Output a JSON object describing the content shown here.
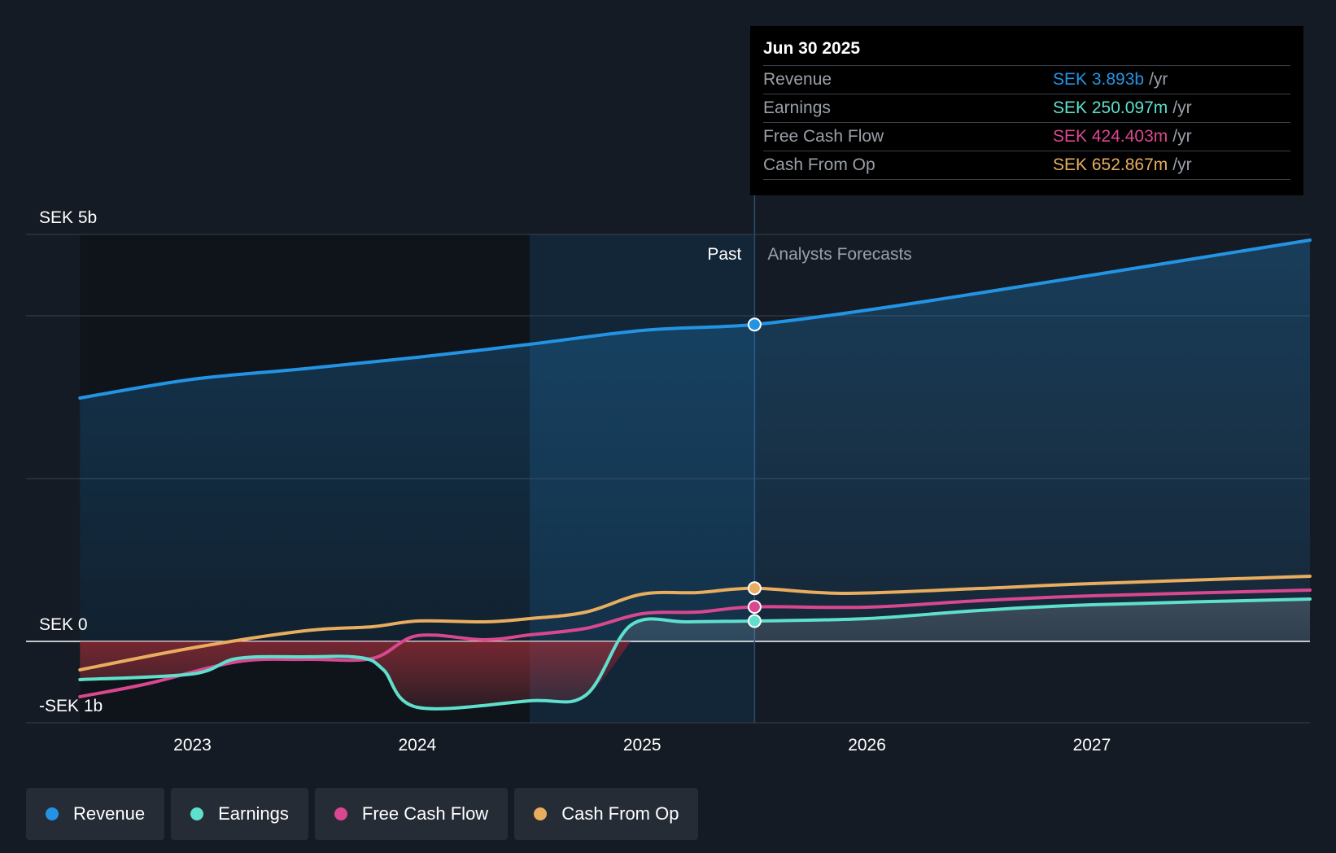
{
  "chart_data": {
    "type": "area",
    "currency": "SEK",
    "y_axis": {
      "ticks": [
        {
          "value": 5,
          "label": "SEK 5b"
        },
        {
          "value": 0,
          "label": "SEK 0"
        },
        {
          "value": -1,
          "label": "-SEK 1b"
        }
      ],
      "ylim": [
        -1,
        5
      ],
      "unit": "billion SEK"
    },
    "x_axis": {
      "ticks": [
        {
          "value": 2023,
          "label": "2023"
        },
        {
          "value": 2024,
          "label": "2024"
        },
        {
          "value": 2025,
          "label": "2025"
        },
        {
          "value": 2026,
          "label": "2026"
        },
        {
          "value": 2027,
          "label": "2027"
        }
      ],
      "xlim": [
        2022.26,
        2027.97
      ]
    },
    "past_label": "Past",
    "forecast_label": "Analysts Forecasts",
    "divider_x": 2025.5,
    "highlight_start_x": 2024.5,
    "series": [
      {
        "name": "Revenue",
        "color": "#2394e4",
        "points": [
          [
            2022.5,
            2.99
          ],
          [
            2023.0,
            3.22
          ],
          [
            2023.5,
            3.35
          ],
          [
            2024.0,
            3.49
          ],
          [
            2024.5,
            3.65
          ],
          [
            2025.0,
            3.82
          ],
          [
            2025.5,
            3.893
          ],
          [
            2026.0,
            4.07
          ],
          [
            2026.5,
            4.28
          ],
          [
            2027.0,
            4.5
          ],
          [
            2027.97,
            4.93
          ]
        ]
      },
      {
        "name": "Earnings",
        "color": "#5fe0cc",
        "points": [
          [
            2022.5,
            -0.47
          ],
          [
            2023.0,
            -0.4
          ],
          [
            2023.2,
            -0.21
          ],
          [
            2023.5,
            -0.19
          ],
          [
            2023.75,
            -0.2
          ],
          [
            2023.85,
            -0.35
          ],
          [
            2024.0,
            -0.81
          ],
          [
            2024.5,
            -0.73
          ],
          [
            2024.75,
            -0.66
          ],
          [
            2024.95,
            0.2
          ],
          [
            2025.2,
            0.24
          ],
          [
            2025.5,
            0.25
          ],
          [
            2026.0,
            0.28
          ],
          [
            2026.5,
            0.38
          ],
          [
            2027.0,
            0.45
          ],
          [
            2027.97,
            0.52
          ]
        ]
      },
      {
        "name": "Free Cash Flow",
        "color": "#d9488f",
        "points": [
          [
            2022.5,
            -0.68
          ],
          [
            2022.8,
            -0.52
          ],
          [
            2023.2,
            -0.25
          ],
          [
            2023.5,
            -0.22
          ],
          [
            2023.8,
            -0.21
          ],
          [
            2024.0,
            0.07
          ],
          [
            2024.3,
            0.02
          ],
          [
            2024.5,
            0.08
          ],
          [
            2024.75,
            0.16
          ],
          [
            2025.0,
            0.34
          ],
          [
            2025.25,
            0.36
          ],
          [
            2025.5,
            0.424
          ],
          [
            2026.0,
            0.42
          ],
          [
            2026.5,
            0.5
          ],
          [
            2027.0,
            0.56
          ],
          [
            2027.97,
            0.63
          ]
        ]
      },
      {
        "name": "Cash From Op",
        "color": "#e9ad5f",
        "points": [
          [
            2022.5,
            -0.35
          ],
          [
            2023.0,
            -0.08
          ],
          [
            2023.5,
            0.13
          ],
          [
            2023.8,
            0.18
          ],
          [
            2024.0,
            0.25
          ],
          [
            2024.3,
            0.24
          ],
          [
            2024.5,
            0.28
          ],
          [
            2024.75,
            0.36
          ],
          [
            2025.0,
            0.58
          ],
          [
            2025.25,
            0.6
          ],
          [
            2025.5,
            0.653
          ],
          [
            2025.9,
            0.59
          ],
          [
            2026.5,
            0.65
          ],
          [
            2027.0,
            0.71
          ],
          [
            2027.97,
            0.8
          ]
        ]
      }
    ]
  },
  "tooltip": {
    "date": "Jun 30 2025",
    "rows": [
      {
        "label": "Revenue",
        "value": "SEK 3.893b",
        "unit": "/yr",
        "color": "#2394e4"
      },
      {
        "label": "Earnings",
        "value": "SEK 250.097m",
        "unit": "/yr",
        "color": "#5fe0cc"
      },
      {
        "label": "Free Cash Flow",
        "value": "SEK 424.403m",
        "unit": "/yr",
        "color": "#d9488f"
      },
      {
        "label": "Cash From Op",
        "value": "SEK 652.867m",
        "unit": "/yr",
        "color": "#e9ad5f"
      }
    ]
  },
  "legend": [
    {
      "label": "Revenue",
      "color": "#2394e4"
    },
    {
      "label": "Earnings",
      "color": "#5fe0cc"
    },
    {
      "label": "Free Cash Flow",
      "color": "#d9488f"
    },
    {
      "label": "Cash From Op",
      "color": "#e9ad5f"
    }
  ]
}
